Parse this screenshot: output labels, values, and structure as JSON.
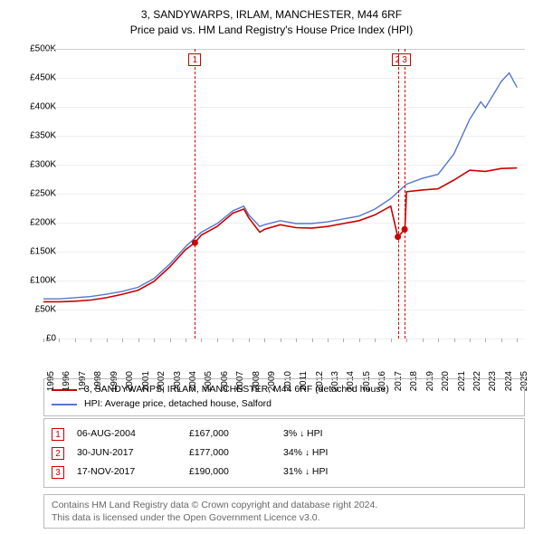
{
  "title": {
    "line1": "3, SANDYWARPS, IRLAM, MANCHESTER, M44 6RF",
    "line2": "Price paid vs. HM Land Registry's House Price Index (HPI)",
    "fontsize": 12
  },
  "chart": {
    "type": "line",
    "x_years": [
      1995,
      1996,
      1997,
      1998,
      1999,
      2000,
      2001,
      2002,
      2003,
      2004,
      2005,
      2006,
      2007,
      2008,
      2009,
      2010,
      2011,
      2012,
      2013,
      2014,
      2015,
      2016,
      2017,
      2018,
      2019,
      2020,
      2021,
      2022,
      2023,
      2024,
      2025
    ],
    "x_start": 1995,
    "x_end": 2025.5,
    "ylim": [
      0,
      500000
    ],
    "ytick_step": 50000,
    "y_tick_labels": [
      "£0",
      "£50K",
      "£100K",
      "£150K",
      "£200K",
      "£250K",
      "£300K",
      "£350K",
      "£400K",
      "£450K",
      "£500K"
    ],
    "grid_color": "#eeeeee",
    "background_color": "#ffffff",
    "label_fontsize": 10,
    "series": [
      {
        "name": "property",
        "label": "3, SANDYWARPS, IRLAM, MANCHESTER, M44 6RF (detached house)",
        "color": "#cc0000",
        "width": 1.6,
        "data": [
          [
            1995,
            65000
          ],
          [
            1996,
            65000
          ],
          [
            1997,
            66000
          ],
          [
            1998,
            68000
          ],
          [
            1999,
            72000
          ],
          [
            2000,
            78000
          ],
          [
            2001,
            85000
          ],
          [
            2002,
            100000
          ],
          [
            2003,
            125000
          ],
          [
            2004,
            155000
          ],
          [
            2004.6,
            167000
          ],
          [
            2005,
            180000
          ],
          [
            2006,
            195000
          ],
          [
            2007,
            218000
          ],
          [
            2007.7,
            225000
          ],
          [
            2008,
            210000
          ],
          [
            2008.7,
            185000
          ],
          [
            2009,
            190000
          ],
          [
            2010,
            198000
          ],
          [
            2011,
            193000
          ],
          [
            2012,
            192000
          ],
          [
            2013,
            195000
          ],
          [
            2014,
            200000
          ],
          [
            2015,
            205000
          ],
          [
            2016,
            215000
          ],
          [
            2017,
            230000
          ],
          [
            2017.45,
            177000
          ],
          [
            2017.9,
            190000
          ],
          [
            2018,
            255000
          ],
          [
            2019,
            258000
          ],
          [
            2020,
            260000
          ],
          [
            2021,
            275000
          ],
          [
            2022,
            292000
          ],
          [
            2023,
            290000
          ],
          [
            2024,
            295000
          ],
          [
            2025,
            296000
          ]
        ]
      },
      {
        "name": "hpi",
        "label": "HPI: Average price, detached house, Salford",
        "color": "#5577cc",
        "width": 1.4,
        "data": [
          [
            1995,
            70000
          ],
          [
            1996,
            70000
          ],
          [
            1997,
            72000
          ],
          [
            1998,
            74000
          ],
          [
            1999,
            78000
          ],
          [
            2000,
            83000
          ],
          [
            2001,
            90000
          ],
          [
            2002,
            105000
          ],
          [
            2003,
            130000
          ],
          [
            2004,
            160000
          ],
          [
            2005,
            185000
          ],
          [
            2006,
            200000
          ],
          [
            2007,
            222000
          ],
          [
            2007.7,
            230000
          ],
          [
            2008,
            215000
          ],
          [
            2008.7,
            195000
          ],
          [
            2009,
            198000
          ],
          [
            2010,
            205000
          ],
          [
            2011,
            200000
          ],
          [
            2012,
            200000
          ],
          [
            2013,
            203000
          ],
          [
            2014,
            208000
          ],
          [
            2015,
            213000
          ],
          [
            2016,
            225000
          ],
          [
            2017,
            243000
          ],
          [
            2018,
            268000
          ],
          [
            2019,
            278000
          ],
          [
            2020,
            285000
          ],
          [
            2021,
            320000
          ],
          [
            2022,
            380000
          ],
          [
            2022.7,
            410000
          ],
          [
            2023,
            400000
          ],
          [
            2024,
            445000
          ],
          [
            2024.5,
            460000
          ],
          [
            2025,
            435000
          ]
        ]
      }
    ],
    "sale_markers": [
      {
        "n": "1",
        "year": 2004.6,
        "price": 167000
      },
      {
        "n": "2",
        "year": 2017.45,
        "price": 177000
      },
      {
        "n": "3",
        "year": 2017.88,
        "price": 190000
      }
    ],
    "marker_box_color": "#cc0000",
    "vline_color": "#cc0000"
  },
  "legend": {
    "items": [
      {
        "color": "#cc0000",
        "label": "3, SANDYWARPS, IRLAM, MANCHESTER, M44 6RF (detached house)"
      },
      {
        "color": "#5577cc",
        "label": "HPI: Average price, detached house, Salford"
      }
    ]
  },
  "sales": [
    {
      "n": "1",
      "date": "06-AUG-2004",
      "price": "£167,000",
      "delta": "3%",
      "arrow": "↓",
      "vs": "HPI"
    },
    {
      "n": "2",
      "date": "30-JUN-2017",
      "price": "£177,000",
      "delta": "34%",
      "arrow": "↓",
      "vs": "HPI"
    },
    {
      "n": "3",
      "date": "17-NOV-2017",
      "price": "£190,000",
      "delta": "31%",
      "arrow": "↓",
      "vs": "HPI"
    }
  ],
  "attribution": {
    "line1": "Contains HM Land Registry data © Crown copyright and database right 2024.",
    "line2": "This data is licensed under the Open Government Licence v3.0."
  }
}
